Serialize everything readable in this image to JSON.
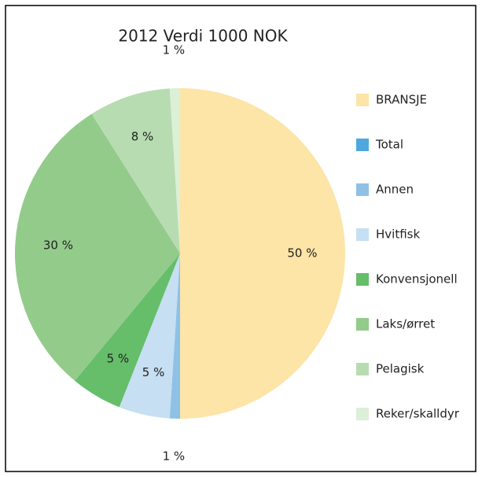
{
  "chart_data": {
    "type": "pie",
    "title": "2012 Verdi 1000 NOK",
    "categories": [
      "BRANSJE",
      "Total",
      "Annen",
      "Hvitfisk",
      "Konvensjonell",
      "Laks/ørret",
      "Pelagisk",
      "Reker/skalldyr"
    ],
    "values": [
      50,
      0,
      1,
      5,
      5,
      30,
      8,
      1
    ],
    "value_labels": [
      "50 %",
      null,
      "1 %",
      "5 %",
      "5 %",
      "30 %",
      "8 %",
      "1 %"
    ],
    "colors": [
      "#fde4a7",
      "#4ea8de",
      "#8fc1e7",
      "#c6dff2",
      "#66bd6a",
      "#93cb8b",
      "#b8dcb1",
      "#dcefd7"
    ],
    "legend": "right"
  }
}
